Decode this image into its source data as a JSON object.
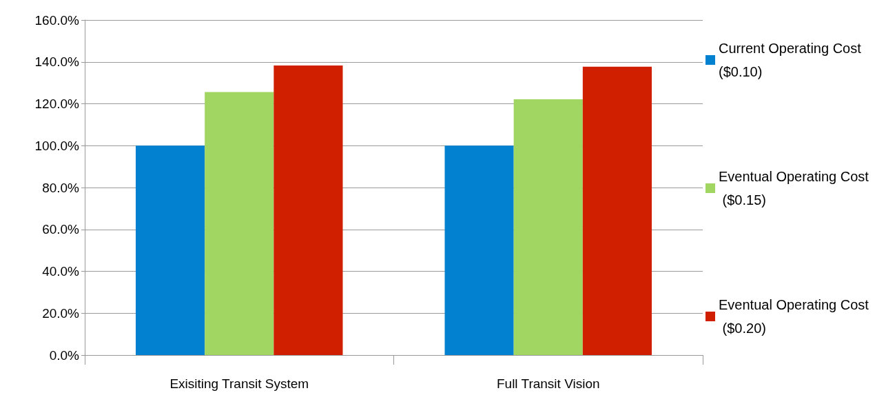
{
  "chart_data": {
    "type": "bar",
    "categories": [
      "Exisiting Transit System",
      "Full Transit Vision"
    ],
    "series": [
      {
        "name": "Current Operating Cost ($0.10)",
        "color": "#0281d0",
        "values": [
          100,
          100
        ]
      },
      {
        "name": "Eventual Operating Cost ($0.15)",
        "color": "#a2d662",
        "values": [
          125.6,
          122.1
        ]
      },
      {
        "name": "Eventual Operating Cost ($0.20)",
        "color": "#d01f00",
        "values": [
          138.3,
          137.7
        ]
      }
    ],
    "ylim": [
      0,
      160
    ],
    "yticks": [
      {
        "value": 0,
        "label": "0.0%"
      },
      {
        "value": 20,
        "label": "20.0%"
      },
      {
        "value": 40,
        "label": "40.0%"
      },
      {
        "value": 60,
        "label": "60.0%"
      },
      {
        "value": 80,
        "label": "80.0%"
      },
      {
        "value": 100,
        "label": "100.0%"
      },
      {
        "value": 120,
        "label": "120.0%"
      },
      {
        "value": 140,
        "label": "140.0%"
      },
      {
        "value": 160,
        "label": "160.0%"
      }
    ],
    "grid": "y",
    "legend": "right"
  }
}
